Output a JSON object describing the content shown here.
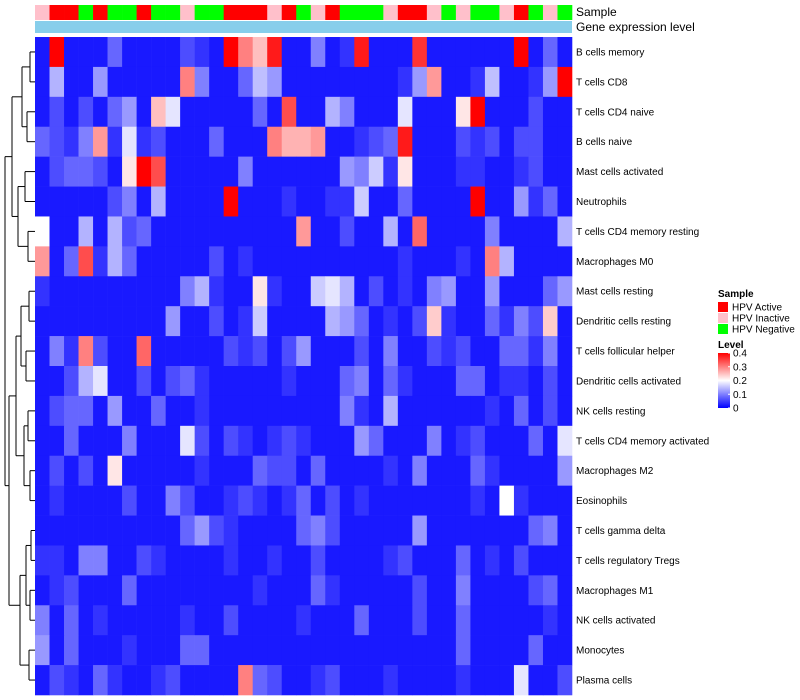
{
  "chart_data": {
    "type": "heatmap",
    "annotation_tracks": [
      {
        "name": "Sample",
        "label": "Sample"
      },
      {
        "name": "Gene expression level",
        "label": "Gene expression level",
        "color": "#87ceeb"
      }
    ],
    "sample_groups": [
      {
        "name": "HPV Active",
        "color": "#ff0000"
      },
      {
        "name": "HPV Inactive",
        "color": "#ffc0cb"
      },
      {
        "name": "HPV Negative",
        "color": "#00ff00"
      }
    ],
    "columns": [
      "HPV Inactive",
      "HPV Active",
      "HPV Active",
      "HPV Negative",
      "HPV Active",
      "HPV Negative",
      "HPV Negative",
      "HPV Active",
      "HPV Negative",
      "HPV Negative",
      "HPV Inactive",
      "HPV Negative",
      "HPV Negative",
      "HPV Active",
      "HPV Active",
      "HPV Active",
      "HPV Inactive",
      "HPV Active",
      "HPV Negative",
      "HPV Inactive",
      "HPV Active",
      "HPV Negative",
      "HPV Negative",
      "HPV Negative",
      "HPV Inactive",
      "HPV Active",
      "HPV Active",
      "HPV Inactive",
      "HPV Negative",
      "HPV Inactive",
      "HPV Negative",
      "HPV Negative",
      "HPV Inactive",
      "HPV Active",
      "HPV Negative",
      "HPV Inactive",
      "HPV Negative"
    ],
    "rows": [
      "B cells memory",
      "T cells CD8",
      "T cells CD4 naive",
      "B cells naive",
      "Mast cells activated",
      "Neutrophils",
      "T cells CD4 memory resting",
      "Macrophages M0",
      "Mast cells resting",
      "Dendritic cells resting",
      "T cells follicular helper",
      "Dendritic cells activated",
      "NK cells resting",
      "T cells CD4 memory activated",
      "Macrophages M2",
      "Eosinophils",
      "T cells gamma delta",
      "T cells regulatory  Tregs",
      "Macrophages M1",
      "NK cells activated",
      "Monocytes",
      "Plasma cells"
    ],
    "values": [
      [
        0.02,
        0.4,
        0.02,
        0.02,
        0.02,
        0.08,
        0.02,
        0.02,
        0.02,
        0.02,
        0.06,
        0.04,
        0.02,
        0.4,
        0.3,
        0.25,
        0.38,
        0.02,
        0.02,
        0.1,
        0.02,
        0.04,
        0.38,
        0.02,
        0.02,
        0.02,
        0.36,
        0.02,
        0.02,
        0.02,
        0.02,
        0.02,
        0.02,
        0.4,
        0.02,
        0.08,
        0.02
      ],
      [
        0.02,
        0.14,
        0.02,
        0.02,
        0.12,
        0.02,
        0.02,
        0.02,
        0.02,
        0.02,
        0.3,
        0.1,
        0.02,
        0.02,
        0.08,
        0.15,
        0.12,
        0.02,
        0.02,
        0.02,
        0.02,
        0.02,
        0.02,
        0.02,
        0.02,
        0.04,
        0.12,
        0.28,
        0.02,
        0.02,
        0.04,
        0.15,
        0.02,
        0.02,
        0.04,
        0.12,
        0.4
      ],
      [
        0.02,
        0.06,
        0.02,
        0.06,
        0.02,
        0.08,
        0.12,
        0.02,
        0.25,
        0.18,
        0.02,
        0.02,
        0.02,
        0.02,
        0.02,
        0.08,
        0.02,
        0.34,
        0.02,
        0.02,
        0.14,
        0.1,
        0.02,
        0.02,
        0.02,
        0.18,
        0.02,
        0.02,
        0.02,
        0.22,
        0.4,
        0.02,
        0.02,
        0.02,
        0.06,
        0.02,
        0.02
      ],
      [
        0.08,
        0.06,
        0.04,
        0.1,
        0.28,
        0.04,
        0.18,
        0.04,
        0.06,
        0.02,
        0.02,
        0.02,
        0.08,
        0.02,
        0.02,
        0.02,
        0.3,
        0.26,
        0.26,
        0.28,
        0.02,
        0.02,
        0.04,
        0.06,
        0.08,
        0.38,
        0.02,
        0.02,
        0.02,
        0.06,
        0.04,
        0.06,
        0.02,
        0.06,
        0.06,
        0.02,
        0.02
      ],
      [
        0.02,
        0.06,
        0.08,
        0.08,
        0.06,
        0.02,
        0.22,
        0.4,
        0.34,
        0.02,
        0.02,
        0.02,
        0.02,
        0.02,
        0.1,
        0.02,
        0.02,
        0.02,
        0.02,
        0.02,
        0.02,
        0.12,
        0.1,
        0.16,
        0.04,
        0.22,
        0.02,
        0.02,
        0.02,
        0.04,
        0.04,
        0.02,
        0.02,
        0.04,
        0.06,
        0.02,
        0.02
      ],
      [
        0.02,
        0.02,
        0.02,
        0.02,
        0.02,
        0.06,
        0.1,
        0.02,
        0.14,
        0.02,
        0.02,
        0.02,
        0.02,
        0.4,
        0.02,
        0.02,
        0.02,
        0.04,
        0.02,
        0.02,
        0.04,
        0.04,
        0.16,
        0.02,
        0.02,
        0.08,
        0.02,
        0.02,
        0.02,
        0.02,
        0.4,
        0.02,
        0.02,
        0.12,
        0.04,
        0.08,
        0.02
      ],
      [
        0.2,
        0.02,
        0.02,
        0.14,
        0.02,
        0.14,
        0.06,
        0.08,
        0.02,
        0.02,
        0.02,
        0.02,
        0.02,
        0.02,
        0.02,
        0.02,
        0.02,
        0.02,
        0.28,
        0.02,
        0.02,
        0.06,
        0.02,
        0.02,
        0.14,
        0.02,
        0.32,
        0.02,
        0.02,
        0.02,
        0.02,
        0.1,
        0.02,
        0.02,
        0.02,
        0.02,
        0.14
      ],
      [
        0.28,
        0.02,
        0.08,
        0.34,
        0.04,
        0.14,
        0.08,
        0.02,
        0.02,
        0.02,
        0.02,
        0.02,
        0.06,
        0.02,
        0.04,
        0.02,
        0.02,
        0.02,
        0.02,
        0.02,
        0.02,
        0.02,
        0.02,
        0.02,
        0.02,
        0.04,
        0.02,
        0.02,
        0.02,
        0.04,
        0.02,
        0.3,
        0.14,
        0.02,
        0.02,
        0.02,
        0.02
      ],
      [
        0.04,
        0.02,
        0.02,
        0.02,
        0.02,
        0.02,
        0.02,
        0.02,
        0.02,
        0.02,
        0.1,
        0.14,
        0.04,
        0.02,
        0.02,
        0.22,
        0.04,
        0.02,
        0.02,
        0.16,
        0.18,
        0.14,
        0.02,
        0.06,
        0.02,
        0.04,
        0.02,
        0.1,
        0.12,
        0.02,
        0.02,
        0.12,
        0.02,
        0.02,
        0.02,
        0.08,
        0.12
      ],
      [
        0.02,
        0.02,
        0.02,
        0.02,
        0.02,
        0.02,
        0.02,
        0.02,
        0.02,
        0.12,
        0.02,
        0.02,
        0.06,
        0.02,
        0.04,
        0.16,
        0.02,
        0.02,
        0.02,
        0.02,
        0.14,
        0.12,
        0.08,
        0.02,
        0.04,
        0.02,
        0.06,
        0.24,
        0.04,
        0.02,
        0.02,
        0.08,
        0.04,
        0.1,
        0.06,
        0.24,
        0.02
      ],
      [
        0.02,
        0.1,
        0.04,
        0.3,
        0.06,
        0.02,
        0.02,
        0.32,
        0.02,
        0.02,
        0.02,
        0.02,
        0.02,
        0.06,
        0.04,
        0.06,
        0.02,
        0.06,
        0.12,
        0.02,
        0.02,
        0.02,
        0.06,
        0.02,
        0.1,
        0.02,
        0.02,
        0.06,
        0.04,
        0.06,
        0.02,
        0.02,
        0.08,
        0.08,
        0.04,
        0.1,
        0.02
      ],
      [
        0.02,
        0.02,
        0.06,
        0.14,
        0.18,
        0.02,
        0.02,
        0.06,
        0.02,
        0.06,
        0.08,
        0.04,
        0.02,
        0.02,
        0.02,
        0.02,
        0.02,
        0.04,
        0.02,
        0.02,
        0.02,
        0.08,
        0.1,
        0.02,
        0.08,
        0.04,
        0.02,
        0.02,
        0.02,
        0.08,
        0.08,
        0.02,
        0.04,
        0.04,
        0.02,
        0.06,
        0.02
      ],
      [
        0.02,
        0.06,
        0.08,
        0.08,
        0.02,
        0.12,
        0.02,
        0.02,
        0.08,
        0.02,
        0.02,
        0.04,
        0.02,
        0.02,
        0.02,
        0.02,
        0.02,
        0.02,
        0.02,
        0.02,
        0.02,
        0.1,
        0.04,
        0.02,
        0.14,
        0.02,
        0.02,
        0.02,
        0.02,
        0.02,
        0.02,
        0.04,
        0.02,
        0.08,
        0.02,
        0.06,
        0.02
      ],
      [
        0.02,
        0.02,
        0.08,
        0.02,
        0.02,
        0.02,
        0.1,
        0.02,
        0.02,
        0.02,
        0.18,
        0.06,
        0.02,
        0.06,
        0.04,
        0.02,
        0.04,
        0.06,
        0.04,
        0.02,
        0.02,
        0.02,
        0.12,
        0.08,
        0.02,
        0.02,
        0.02,
        0.1,
        0.02,
        0.04,
        0.06,
        0.02,
        0.02,
        0.02,
        0.08,
        0.02,
        0.18
      ],
      [
        0.02,
        0.06,
        0.02,
        0.06,
        0.02,
        0.22,
        0.02,
        0.02,
        0.02,
        0.02,
        0.02,
        0.04,
        0.02,
        0.02,
        0.02,
        0.08,
        0.06,
        0.06,
        0.02,
        0.08,
        0.02,
        0.02,
        0.02,
        0.02,
        0.04,
        0.02,
        0.1,
        0.02,
        0.02,
        0.02,
        0.08,
        0.04,
        0.02,
        0.02,
        0.02,
        0.02,
        0.12
      ],
      [
        0.02,
        0.04,
        0.02,
        0.02,
        0.02,
        0.02,
        0.06,
        0.02,
        0.02,
        0.1,
        0.06,
        0.02,
        0.02,
        0.04,
        0.06,
        0.04,
        0.02,
        0.04,
        0.08,
        0.02,
        0.06,
        0.02,
        0.04,
        0.02,
        0.02,
        0.02,
        0.02,
        0.02,
        0.02,
        0.02,
        0.04,
        0.02,
        0.2,
        0.04,
        0.02,
        0.02,
        0.02
      ],
      [
        0.02,
        0.02,
        0.02,
        0.02,
        0.02,
        0.02,
        0.02,
        0.02,
        0.02,
        0.02,
        0.08,
        0.12,
        0.06,
        0.04,
        0.02,
        0.02,
        0.02,
        0.02,
        0.08,
        0.1,
        0.06,
        0.02,
        0.02,
        0.02,
        0.02,
        0.02,
        0.12,
        0.02,
        0.02,
        0.02,
        0.02,
        0.02,
        0.02,
        0.02,
        0.08,
        0.1,
        0.02
      ],
      [
        0.04,
        0.04,
        0.02,
        0.1,
        0.1,
        0.02,
        0.02,
        0.06,
        0.04,
        0.02,
        0.02,
        0.02,
        0.02,
        0.04,
        0.02,
        0.02,
        0.04,
        0.02,
        0.02,
        0.06,
        0.02,
        0.02,
        0.02,
        0.02,
        0.04,
        0.06,
        0.02,
        0.02,
        0.02,
        0.08,
        0.02,
        0.04,
        0.02,
        0.06,
        0.02,
        0.02,
        0.02
      ],
      [
        0.02,
        0.04,
        0.06,
        0.02,
        0.02,
        0.02,
        0.08,
        0.02,
        0.02,
        0.02,
        0.02,
        0.02,
        0.02,
        0.02,
        0.02,
        0.04,
        0.02,
        0.02,
        0.02,
        0.08,
        0.04,
        0.02,
        0.02,
        0.02,
        0.02,
        0.02,
        0.06,
        0.02,
        0.02,
        0.1,
        0.02,
        0.02,
        0.02,
        0.02,
        0.06,
        0.08,
        0.02
      ],
      [
        0.1,
        0.02,
        0.08,
        0.02,
        0.04,
        0.02,
        0.02,
        0.02,
        0.02,
        0.02,
        0.04,
        0.02,
        0.02,
        0.06,
        0.02,
        0.02,
        0.02,
        0.02,
        0.04,
        0.02,
        0.02,
        0.02,
        0.08,
        0.02,
        0.02,
        0.02,
        0.06,
        0.02,
        0.02,
        0.08,
        0.02,
        0.02,
        0.02,
        0.02,
        0.02,
        0.04,
        0.02
      ],
      [
        0.12,
        0.02,
        0.08,
        0.02,
        0.02,
        0.02,
        0.04,
        0.02,
        0.02,
        0.02,
        0.08,
        0.08,
        0.02,
        0.02,
        0.02,
        0.02,
        0.02,
        0.02,
        0.02,
        0.02,
        0.02,
        0.02,
        0.02,
        0.02,
        0.02,
        0.02,
        0.02,
        0.02,
        0.02,
        0.08,
        0.02,
        0.02,
        0.02,
        0.02,
        0.08,
        0.02,
        0.02
      ],
      [
        0.02,
        0.06,
        0.04,
        0.02,
        0.08,
        0.04,
        0.02,
        0.02,
        0.04,
        0.06,
        0.02,
        0.02,
        0.02,
        0.02,
        0.3,
        0.08,
        0.06,
        0.02,
        0.02,
        0.04,
        0.06,
        0.02,
        0.02,
        0.02,
        0.04,
        0.02,
        0.02,
        0.02,
        0.02,
        0.04,
        0.02,
        0.02,
        0.02,
        0.18,
        0.02,
        0.02,
        0.06
      ]
    ],
    "legend": {
      "sample_title": "Sample",
      "level_title": "Level",
      "level_ticks": [
        "0.4",
        "0.3",
        "0.2",
        "0.1",
        "0"
      ],
      "level_tick_values": [
        0.4,
        0.3,
        0.2,
        0.1,
        0
      ],
      "level_range": [
        0,
        0.4
      ],
      "level_colors": [
        "#0000ff",
        "#ffffff",
        "#ff0000"
      ]
    }
  }
}
